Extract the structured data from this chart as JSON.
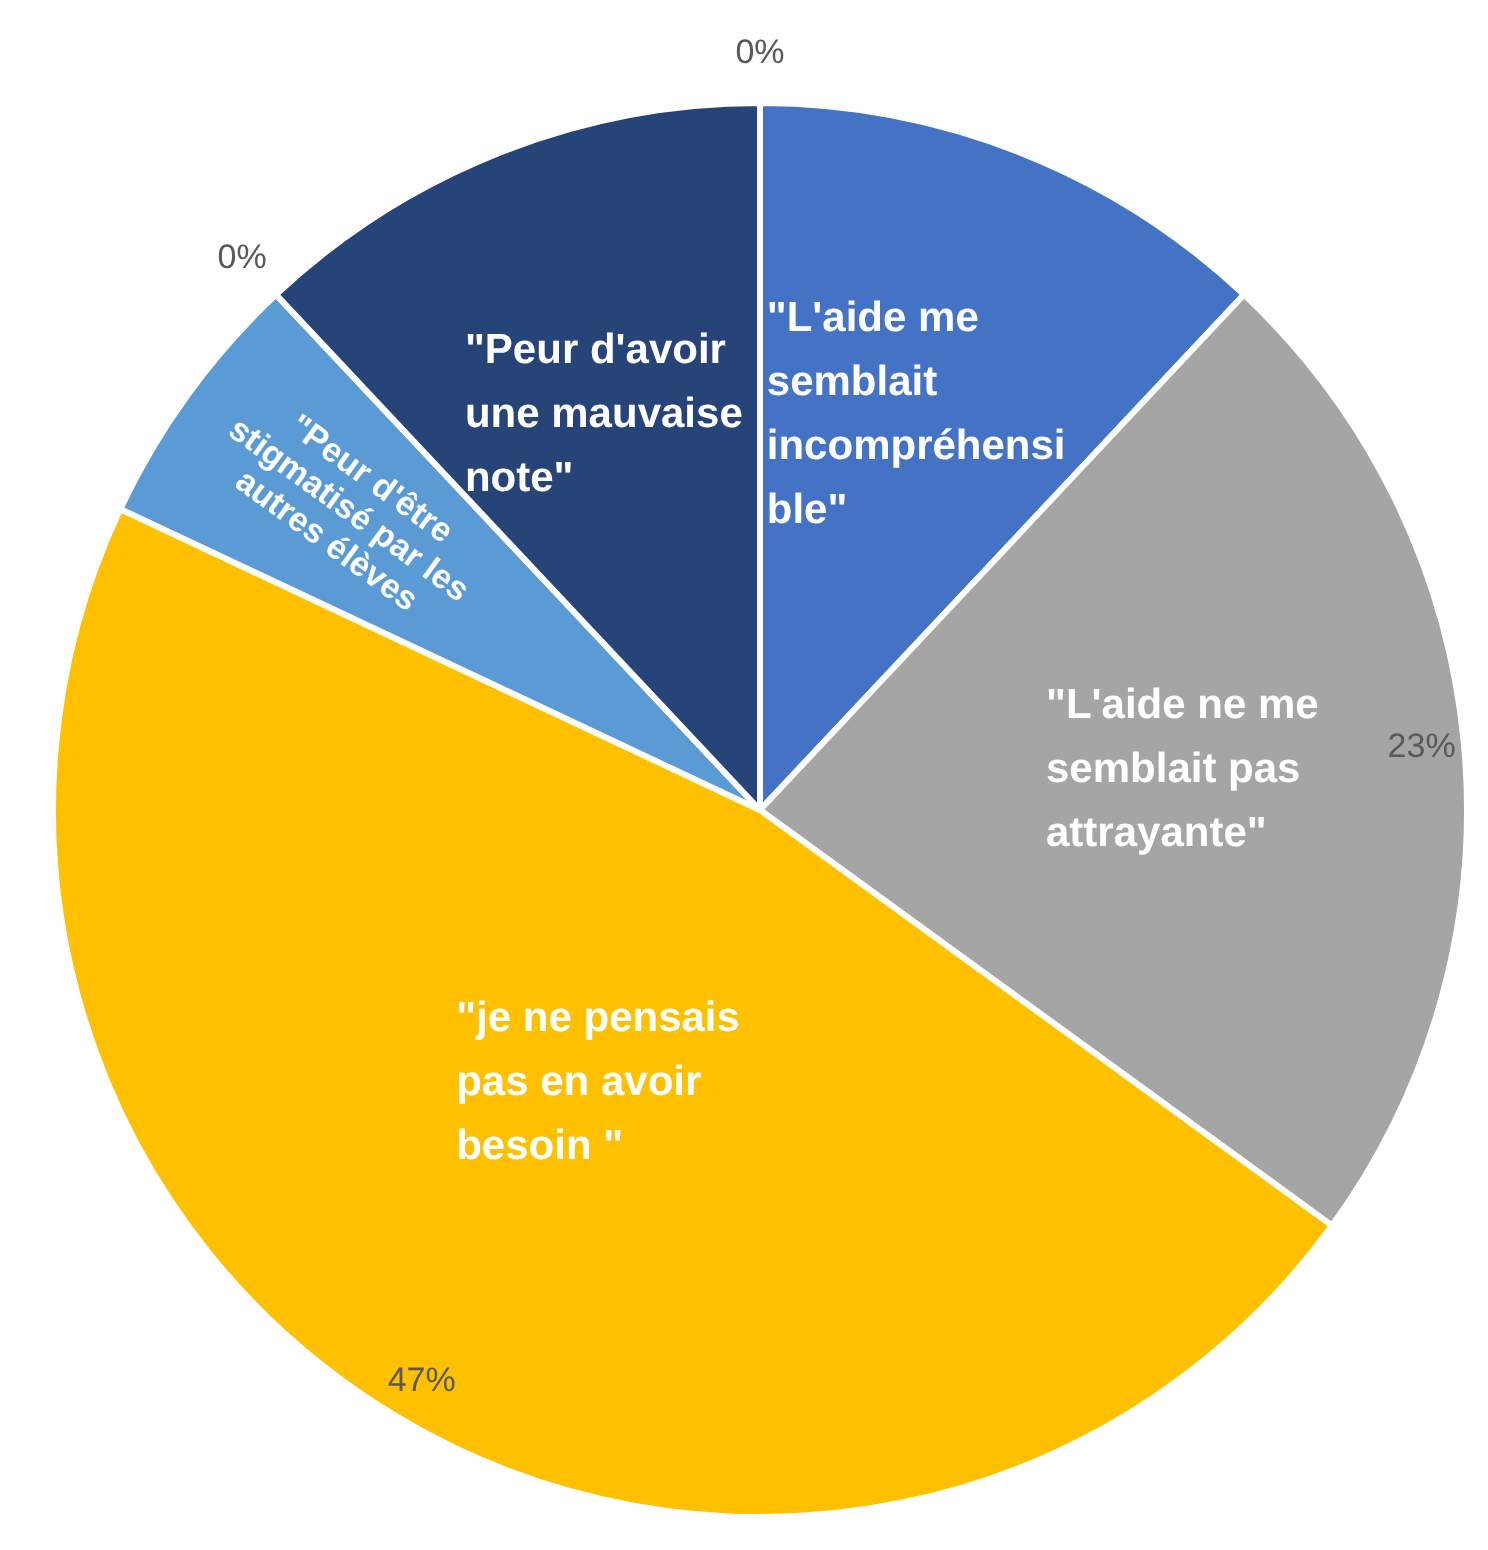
{
  "chart_data": {
    "type": "pie",
    "categories": [
      "\"L'aide me semblait incompréhensible\"",
      "\"L'aide ne me semblait pas attrayante\"",
      "\"je ne pensais pas en avoir besoin \"",
      "\"Peur d'être stigmatisé par les autres élèves",
      null,
      "\"Peur d'avoir une mauvaise note\"",
      null
    ],
    "values": [
      12,
      23,
      47,
      6,
      0,
      12,
      0
    ],
    "colors": [
      "#4472c4",
      "#a5a5a5",
      "#ffc000",
      "#5b9bd5",
      "#70ad47",
      "#264478",
      "#9e480e"
    ],
    "value_labels": [
      null,
      "23%",
      "47%",
      null,
      "0%",
      null,
      "0%"
    ],
    "legend": false
  }
}
